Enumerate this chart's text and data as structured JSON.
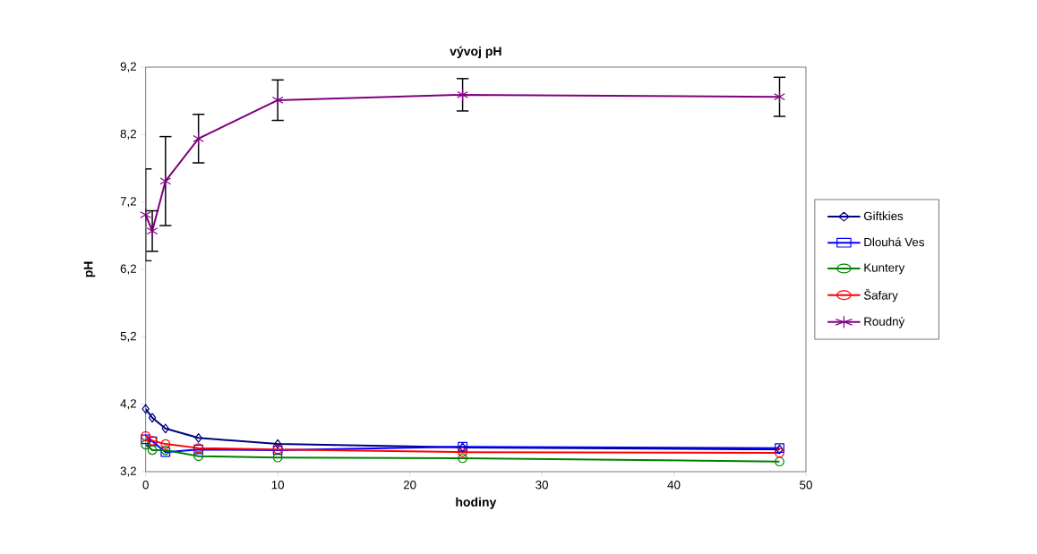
{
  "chart_data": {
    "type": "line",
    "title": "vývoj pH",
    "xlabel": "hodiny",
    "ylabel": "pH",
    "x": [
      0,
      0.5,
      1.5,
      4,
      10,
      24,
      48
    ],
    "series": [
      {
        "name": "Giftkies",
        "color": "#000080",
        "marker": "diamond",
        "values": [
          4.13,
          4.0,
          3.84,
          3.7,
          3.61,
          3.56,
          3.53
        ]
      },
      {
        "name": "Dlouhá Ves",
        "color": "#0000ff",
        "marker": "square",
        "values": [
          3.68,
          3.65,
          3.49,
          3.53,
          3.52,
          3.57,
          3.55
        ]
      },
      {
        "name": "Kuntery",
        "color": "#008000",
        "marker": "circle",
        "values": [
          3.6,
          3.52,
          3.52,
          3.43,
          3.41,
          3.4,
          3.35
        ]
      },
      {
        "name": "Šafary",
        "color": "#ff0000",
        "marker": "circle",
        "values": [
          3.73,
          3.66,
          3.61,
          3.55,
          3.53,
          3.49,
          3.48
        ]
      },
      {
        "name": "Roudný",
        "color": "#800080",
        "marker": "cross",
        "values": [
          7.01,
          6.77,
          7.51,
          8.14,
          8.71,
          8.79,
          8.76
        ],
        "errors": [
          0.68,
          0.3,
          0.66,
          0.36,
          0.3,
          0.24,
          0.29
        ]
      }
    ],
    "xlim": [
      0,
      50
    ],
    "xticks": [
      0,
      10,
      20,
      30,
      40,
      50
    ],
    "ylim": [
      3.2,
      9.2
    ],
    "yticks": [
      {
        "value": 3.2,
        "label": "3,2"
      },
      {
        "value": 4.2,
        "label": "4,2"
      },
      {
        "value": 5.2,
        "label": "5,2"
      },
      {
        "value": 6.2,
        "label": "6,2"
      },
      {
        "value": 7.2,
        "label": "7,2"
      },
      {
        "value": 8.2,
        "label": "8,2"
      },
      {
        "value": 9.2,
        "label": "9,2"
      }
    ],
    "grid": false,
    "legend": "right",
    "line_style": "solid"
  }
}
